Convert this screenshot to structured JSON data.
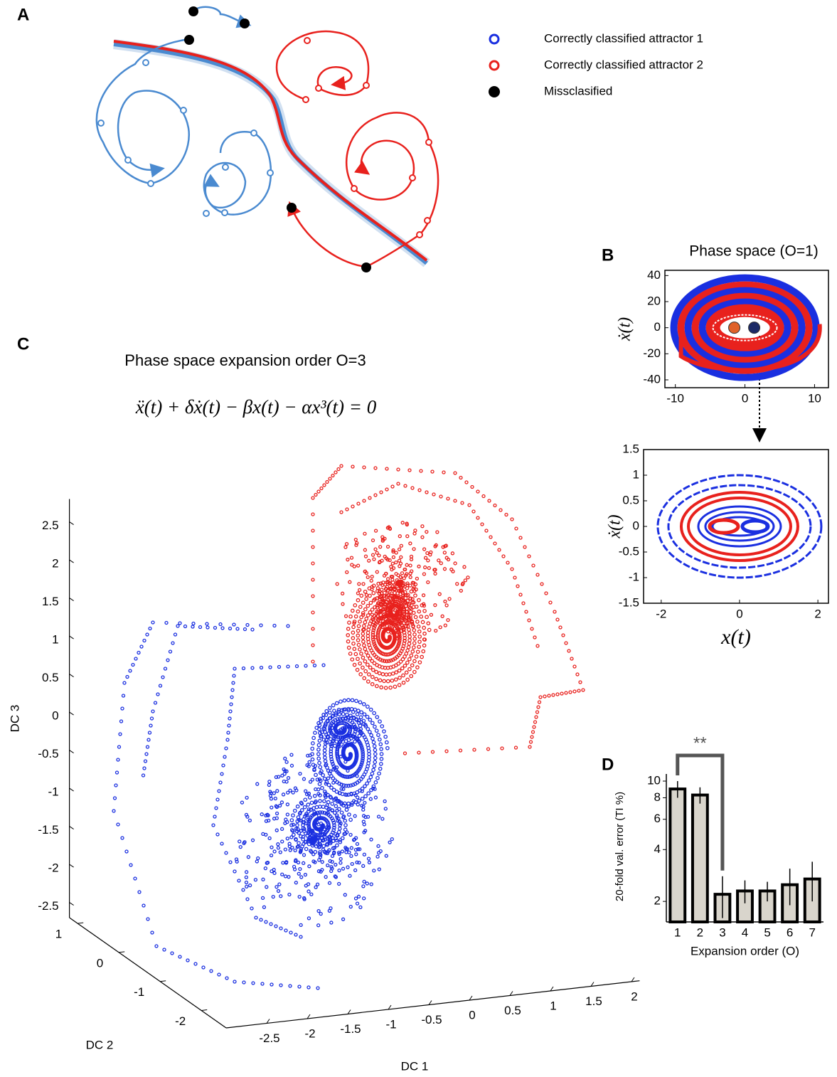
{
  "panel_labels": [
    "A",
    "B",
    "C",
    "D"
  ],
  "legend": [
    {
      "label": "Correctly classified attractor 1",
      "color": "#1a2fe0"
    },
    {
      "label": "Correctly classified attractor 2",
      "color": "#e8211d"
    },
    {
      "label": "Missclasified",
      "color": "#000000"
    }
  ],
  "chart_data": [
    {
      "type": "scatter",
      "title": "Phase space (O=1)",
      "y_label": "ẋ(t)",
      "xlim": [
        -11.5,
        12
      ],
      "ylim": [
        -46,
        44
      ],
      "xticks": [
        -10,
        0,
        10
      ],
      "yticks": [
        -40,
        -20,
        0,
        20,
        40
      ]
    },
    {
      "type": "scatter",
      "x_label": "x(t)",
      "y_label": "ẋ(t)",
      "xlim": [
        -2.45,
        2.27
      ],
      "ylim": [
        -1.5,
        1.5
      ],
      "xticks": [
        -2,
        0,
        2
      ],
      "yticks": [
        -1.5,
        -1,
        -0.5,
        0,
        0.5,
        1,
        1.5
      ]
    },
    {
      "type": "scatter3d",
      "title": "Phase space expansion order O=3",
      "equation": "ẍ(t) + δẋ(t) − βx(t) − αx³(t) = 0",
      "x_label": "DC 1",
      "y_label": "DC 2",
      "z_label": "DC 3",
      "xlim": [
        -3,
        2.1
      ],
      "ylim": [
        -2.6,
        1.2
      ],
      "zlim": [
        -2.7,
        2.8
      ],
      "xticks": [
        -2.5,
        -2,
        -1.5,
        -1,
        -0.5,
        0,
        0.5,
        1,
        1.5,
        2
      ],
      "yticks": [
        -2,
        -1,
        0,
        1
      ],
      "zticks": [
        -2.5,
        -2,
        -1.5,
        -1,
        -0.5,
        0,
        0.5,
        1,
        1.5,
        2,
        2.5
      ]
    },
    {
      "type": "bar",
      "y_label": "20-fold val. error (TI %)",
      "x_label": "Expansion order (O)",
      "categories": [
        "1",
        "2",
        "3",
        "4",
        "5",
        "6",
        "7"
      ],
      "values": [
        9.0,
        8.3,
        2.2,
        2.3,
        2.3,
        2.5,
        2.7
      ],
      "errors": [
        1.0,
        0.9,
        0.6,
        0.35,
        0.3,
        0.6,
        0.7
      ],
      "color": "#d9d5cc",
      "log_scale": true,
      "ylim": [
        1.52,
        11
      ],
      "yticks": [
        2,
        4,
        6,
        8,
        10
      ],
      "annotation": "**"
    }
  ]
}
